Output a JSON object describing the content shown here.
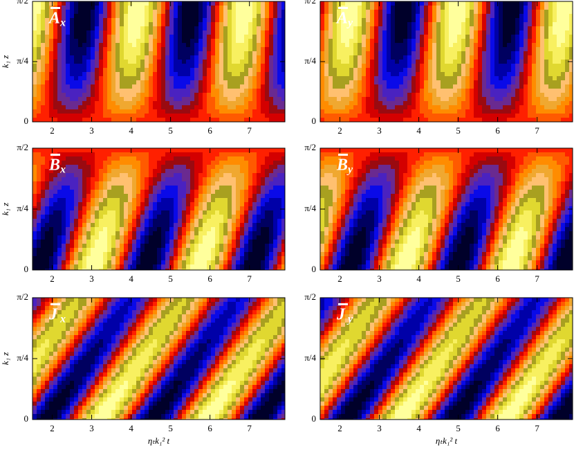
{
  "chart_data": [
    {
      "type": "contour",
      "label": {
        "symbol": "A",
        "sub": "x"
      },
      "y_label": "k₁ z",
      "xlim": [
        1.5,
        7.9
      ],
      "xticks": [
        2,
        3,
        4,
        5,
        6,
        7
      ],
      "ylim": [
        0,
        1.5708
      ],
      "yticks": [
        0,
        {
          "value": 0.7854,
          "label": "π/4"
        },
        {
          "value": 1.5708,
          "label": "π/2"
        }
      ]
    },
    {
      "type": "contour",
      "label": {
        "symbol": "A",
        "sub": "y"
      },
      "xlim": [
        1.5,
        7.9
      ],
      "xticks": [
        2,
        3,
        4,
        5,
        6,
        7
      ],
      "ylim": [
        0,
        1.5708
      ],
      "yticks": [
        0,
        {
          "value": 0.7854,
          "label": "π/4"
        },
        {
          "value": 1.5708,
          "label": "π/2"
        }
      ]
    },
    {
      "type": "contour",
      "label": {
        "symbol": "B",
        "sub": "x"
      },
      "y_label": "k₁ z",
      "xlim": [
        1.5,
        7.9
      ],
      "xticks": [
        2,
        3,
        4,
        5,
        6,
        7
      ],
      "ylim": [
        0,
        1.5708
      ],
      "yticks": [
        0,
        {
          "value": 0.7854,
          "label": "π/4"
        },
        {
          "value": 1.5708,
          "label": "π/2"
        }
      ]
    },
    {
      "type": "contour",
      "label": {
        "symbol": "B",
        "sub": "y"
      },
      "xlim": [
        1.5,
        7.9
      ],
      "xticks": [
        2,
        3,
        4,
        5,
        6,
        7
      ],
      "ylim": [
        0,
        1.5708
      ],
      "yticks": [
        0,
        {
          "value": 0.7854,
          "label": "π/4"
        },
        {
          "value": 1.5708,
          "label": "π/2"
        }
      ]
    },
    {
      "type": "contour",
      "label": {
        "symbol": "J",
        "sub": "x"
      },
      "y_label": "k₁ z",
      "x_label": "ηₜk₁² t",
      "xlim": [
        1.5,
        7.9
      ],
      "xticks": [
        2,
        3,
        4,
        5,
        6,
        7
      ],
      "ylim": [
        0,
        1.5708
      ],
      "yticks": [
        0,
        {
          "value": 0.7854,
          "label": "π/4"
        },
        {
          "value": 1.5708,
          "label": "π/2"
        }
      ]
    },
    {
      "type": "contour",
      "label": {
        "symbol": "J",
        "sub": "y"
      },
      "x_label": "ηₜk₁² t",
      "xlim": [
        1.5,
        7.9
      ],
      "xticks": [
        2,
        3,
        4,
        5,
        6,
        7
      ],
      "ylim": [
        0,
        1.5708
      ],
      "yticks": [
        0,
        {
          "value": 0.7854,
          "label": "π/4"
        },
        {
          "value": 1.5708,
          "label": "π/2"
        }
      ]
    }
  ]
}
